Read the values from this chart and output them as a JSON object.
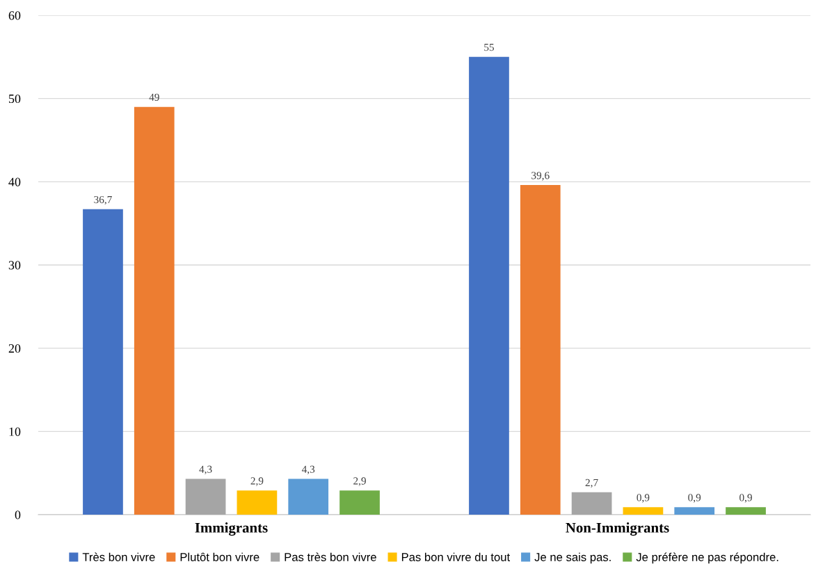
{
  "chart_data": {
    "type": "bar",
    "categories": [
      "Immigrants",
      "Non-Immigrants"
    ],
    "series": [
      {
        "name": "Très bon vivre",
        "color": "#4472c4",
        "values": [
          36.7,
          55
        ],
        "value_labels": [
          "36,7",
          "55"
        ]
      },
      {
        "name": "Plutôt bon vivre",
        "color": "#ed7d31",
        "values": [
          49,
          39.6
        ],
        "value_labels": [
          "49",
          "39,6"
        ]
      },
      {
        "name": "Pas très bon vivre",
        "color": "#a5a5a5",
        "values": [
          4.3,
          2.7
        ],
        "value_labels": [
          "4,3",
          "2,7"
        ]
      },
      {
        "name": "Pas bon vivre du tout",
        "color": "#ffc000",
        "values": [
          2.9,
          0.9
        ],
        "value_labels": [
          "2,9",
          "0,9"
        ]
      },
      {
        "name": "Je ne sais pas.",
        "color": "#5b9bd5",
        "values": [
          4.3,
          0.9
        ],
        "value_labels": [
          "4,3",
          "0,9"
        ]
      },
      {
        "name": "Je préfère ne pas répondre.",
        "color": "#70ad47",
        "values": [
          2.9,
          0.9
        ],
        "value_labels": [
          "2,9",
          "0,9"
        ]
      }
    ],
    "ylim": [
      0,
      60
    ],
    "yticks": [
      0,
      10,
      20,
      30,
      40,
      50,
      60
    ],
    "grid": "y",
    "legend": "bottom"
  }
}
